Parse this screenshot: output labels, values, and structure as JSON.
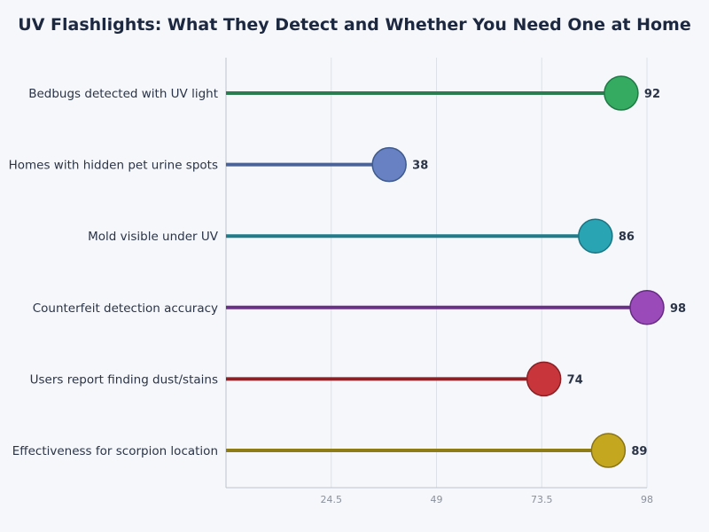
{
  "chart_data": {
    "type": "lollipop",
    "title": "UV Flashlights: What They Detect and Whether You Need One at Home",
    "xlabel": "",
    "ylabel": "",
    "xlim": [
      0,
      98
    ],
    "xticks": [
      "24.5",
      "49",
      "73.5",
      "98"
    ],
    "xtick_values": [
      24.5,
      49,
      73.5,
      98
    ],
    "grid": "vertical",
    "categories": [
      "Bedbugs detected with UV light",
      "Homes with hidden pet urine spots",
      "Mold visible under UV",
      "Counterfeit detection accuracy",
      "Users report finding dust/stains",
      "Effectiveness for scorpion location"
    ],
    "values": [
      92,
      38,
      86,
      98,
      74,
      89
    ],
    "colors": [
      {
        "line": "#2a7d4f",
        "fill": "#35ab62",
        "stroke": "#1f7a45"
      },
      {
        "line": "#4a6296",
        "fill": "#6781c2",
        "stroke": "#3f5a8e"
      },
      {
        "line": "#1f7c8a",
        "fill": "#29a4b3",
        "stroke": "#1b7482"
      },
      {
        "line": "#6a2f86",
        "fill": "#9a4ab9",
        "stroke": "#652a82"
      },
      {
        "line": "#8c2226",
        "fill": "#c8363c",
        "stroke": "#8a1f24"
      },
      {
        "line": "#8e7c17",
        "fill": "#c4a71f",
        "stroke": "#8a7515"
      }
    ]
  }
}
